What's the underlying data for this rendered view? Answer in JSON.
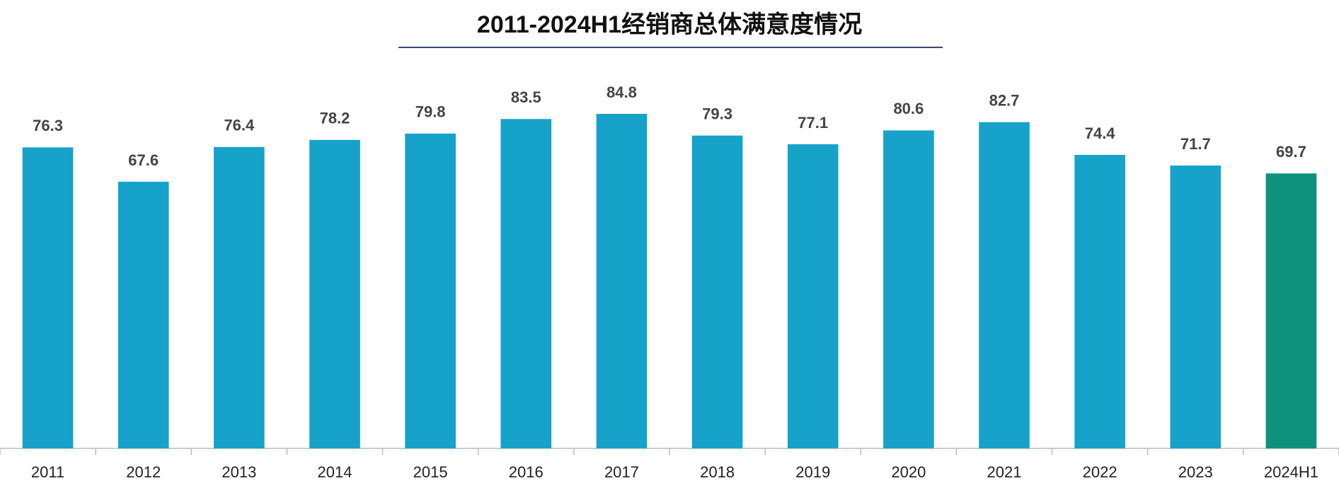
{
  "chart_data": {
    "type": "bar",
    "title": "2011-2024H1经销商总体满意度情况",
    "categories": [
      "2011",
      "2012",
      "2013",
      "2014",
      "2015",
      "2016",
      "2017",
      "2018",
      "2019",
      "2020",
      "2021",
      "2022",
      "2023",
      "2024H1"
    ],
    "values": [
      76.3,
      67.6,
      76.4,
      78.2,
      79.8,
      83.5,
      84.8,
      79.3,
      77.1,
      80.6,
      82.7,
      74.4,
      71.7,
      69.7
    ],
    "colors": [
      "#17a2c9",
      "#17a2c9",
      "#17a2c9",
      "#17a2c9",
      "#17a2c9",
      "#17a2c9",
      "#17a2c9",
      "#17a2c9",
      "#17a2c9",
      "#17a2c9",
      "#17a2c9",
      "#17a2c9",
      "#17a2c9",
      "#0e917b"
    ]
  }
}
